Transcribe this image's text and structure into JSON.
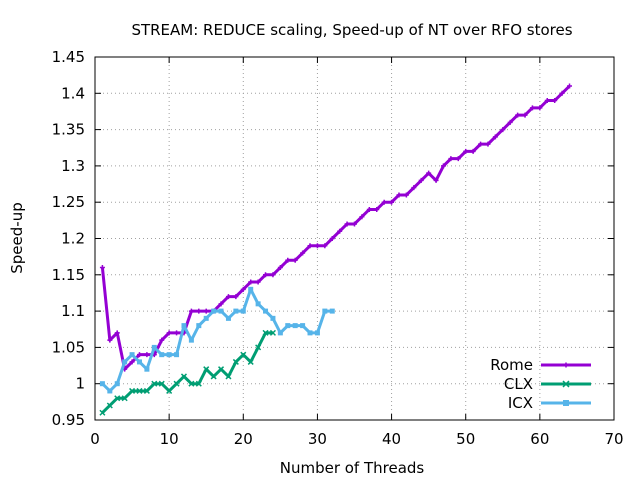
{
  "chart_data": {
    "type": "line",
    "title": "STREAM: REDUCE scaling, Speed-up of NT over RFO stores",
    "xlabel": "Number of Threads",
    "ylabel": "Speed-up",
    "xlim": [
      0,
      70
    ],
    "ylim": [
      0.95,
      1.45
    ],
    "xticks": [
      0,
      10,
      20,
      30,
      40,
      50,
      60,
      70
    ],
    "xtick_labels": [
      "0",
      "10",
      "20",
      "30",
      "40",
      "50",
      "60",
      "70"
    ],
    "yticks": [
      0.95,
      1,
      1.05,
      1.1,
      1.15,
      1.2,
      1.25,
      1.3,
      1.35,
      1.4,
      1.45
    ],
    "ytick_labels": [
      "0.95",
      "1",
      "1.05",
      "1.1",
      "1.15",
      "1.2",
      "1.25",
      "1.3",
      "1.35",
      "1.4",
      "1.45"
    ],
    "grid": true,
    "legend_position": "bottom-right",
    "series": [
      {
        "name": "Rome",
        "color": "#9400d3",
        "x": [
          1,
          2,
          3,
          4,
          5,
          6,
          7,
          8,
          9,
          10,
          11,
          12,
          13,
          14,
          15,
          16,
          17,
          18,
          19,
          20,
          21,
          22,
          23,
          24,
          25,
          26,
          27,
          28,
          29,
          30,
          31,
          32,
          33,
          34,
          35,
          36,
          37,
          38,
          39,
          40,
          41,
          42,
          43,
          44,
          45,
          46,
          47,
          48,
          49,
          50,
          51,
          52,
          53,
          54,
          55,
          56,
          57,
          58,
          59,
          60,
          61,
          62,
          63,
          64
        ],
        "y": [
          1.16,
          1.06,
          1.07,
          1.02,
          1.03,
          1.04,
          1.04,
          1.04,
          1.06,
          1.07,
          1.07,
          1.07,
          1.1,
          1.1,
          1.1,
          1.1,
          1.11,
          1.12,
          1.12,
          1.13,
          1.14,
          1.14,
          1.15,
          1.15,
          1.16,
          1.17,
          1.17,
          1.18,
          1.19,
          1.19,
          1.19,
          1.2,
          1.21,
          1.22,
          1.22,
          1.23,
          1.24,
          1.24,
          1.25,
          1.25,
          1.26,
          1.26,
          1.27,
          1.28,
          1.29,
          1.28,
          1.3,
          1.31,
          1.31,
          1.32,
          1.32,
          1.33,
          1.33,
          1.34,
          1.35,
          1.36,
          1.37,
          1.37,
          1.38,
          1.38,
          1.39,
          1.39,
          1.4,
          1.41
        ]
      },
      {
        "name": "CLX",
        "color": "#009e73",
        "x": [
          1,
          2,
          3,
          4,
          5,
          6,
          7,
          8,
          9,
          10,
          11,
          12,
          13,
          14,
          15,
          16,
          17,
          18,
          19,
          20,
          21,
          22,
          23,
          24
        ],
        "y": [
          0.96,
          0.97,
          0.98,
          0.98,
          0.99,
          0.99,
          0.99,
          1.0,
          1.0,
          0.99,
          1.0,
          1.01,
          1.0,
          1.0,
          1.02,
          1.01,
          1.02,
          1.01,
          1.03,
          1.04,
          1.03,
          1.05,
          1.07,
          1.07
        ]
      },
      {
        "name": "ICX",
        "color": "#56b4e9",
        "x": [
          1,
          2,
          3,
          4,
          5,
          6,
          7,
          8,
          9,
          10,
          11,
          12,
          13,
          14,
          15,
          16,
          17,
          18,
          19,
          20,
          21,
          22,
          23,
          24,
          25,
          26,
          27,
          28,
          29,
          30,
          31,
          32
        ],
        "y": [
          1.0,
          0.99,
          1.0,
          1.03,
          1.04,
          1.03,
          1.02,
          1.05,
          1.04,
          1.04,
          1.04,
          1.08,
          1.06,
          1.08,
          1.09,
          1.1,
          1.1,
          1.09,
          1.1,
          1.1,
          1.13,
          1.11,
          1.1,
          1.09,
          1.07,
          1.08,
          1.08,
          1.08,
          1.07,
          1.07,
          1.1,
          1.1
        ]
      }
    ]
  }
}
